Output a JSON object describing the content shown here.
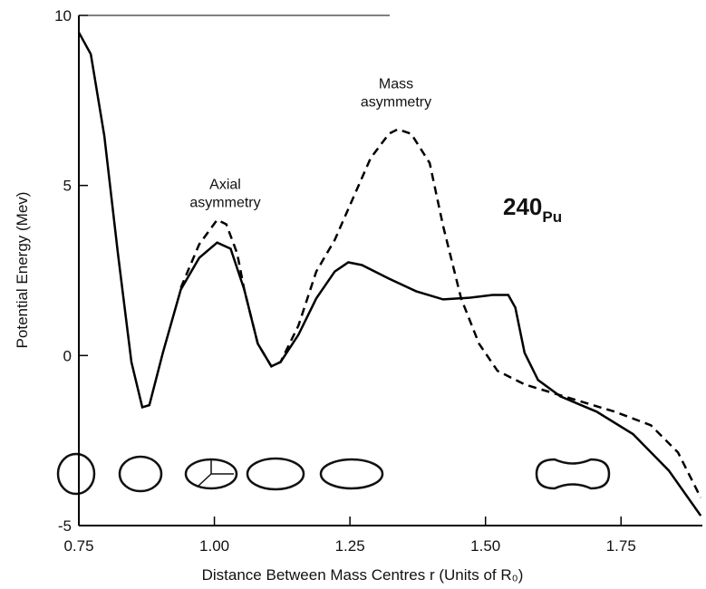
{
  "chart_data": {
    "type": "line",
    "x_label": "Distance Between Mass Centres r (Units of R₀)",
    "y_label": "Potential Energy (Mev)",
    "annotations": [
      {
        "lines": [
          "Axial",
          "asymmetry"
        ],
        "x": 1.02,
        "y": 4.9
      },
      {
        "lines": [
          "Mass",
          "asymmetry"
        ],
        "x": 1.335,
        "y": 7.85
      }
    ],
    "nucleus_label": {
      "mass_number": "240",
      "element": "Pu",
      "color": "#3a3ab0"
    },
    "xlim": [
      0.75,
      1.9
    ],
    "ylim": [
      -5,
      10
    ],
    "xticks": [
      0.75,
      {
        "value": 1,
        "label": "1.00"
      },
      1.25,
      {
        "value": 1.5,
        "label": "1.50"
      },
      1.75
    ],
    "yticks": [
      -5,
      0,
      5,
      10
    ],
    "series": [
      {
        "color": "#000000",
        "linestyle": "solid",
        "x": [
          0.75,
          0.772,
          0.797,
          0.822,
          0.847,
          0.867,
          0.88,
          0.905,
          0.938,
          0.972,
          1.005,
          1.03,
          1.055,
          1.08,
          1.105,
          1.122,
          1.155,
          1.188,
          1.222,
          1.247,
          1.272,
          1.322,
          1.372,
          1.422,
          1.472,
          1.513,
          1.542,
          1.555,
          1.572,
          1.597,
          1.638,
          1.705,
          1.772,
          1.838,
          1.897
        ],
        "values": [
          9.5,
          8.86,
          6.46,
          3.0,
          -0.19,
          -1.52,
          -1.46,
          0.08,
          1.94,
          2.87,
          3.32,
          3.14,
          1.94,
          0.35,
          -0.32,
          -0.19,
          0.61,
          1.68,
          2.47,
          2.74,
          2.66,
          2.26,
          1.89,
          1.65,
          1.7,
          1.78,
          1.78,
          1.41,
          0.08,
          -0.72,
          -1.2,
          -1.65,
          -2.31,
          -3.38,
          -4.71
        ]
      },
      {
        "color": "#000000",
        "linestyle": "dashed",
        "x": [
          0.938,
          0.972,
          1.005,
          1.022,
          1.042,
          1.055,
          1.08,
          1.105,
          1.122,
          1.155,
          1.188,
          1.222,
          1.255,
          1.288,
          1.322,
          1.338,
          1.363,
          1.397,
          1.422,
          1.455,
          1.488,
          1.522,
          1.572,
          1.638,
          1.738,
          1.805,
          1.855,
          1.897
        ],
        "values": [
          1.99,
          3.27,
          3.99,
          3.86,
          3.0,
          1.94,
          0.35,
          -0.32,
          -0.19,
          0.88,
          2.47,
          3.4,
          4.6,
          5.8,
          6.52,
          6.65,
          6.52,
          5.66,
          3.8,
          1.68,
          0.35,
          -0.45,
          -0.85,
          -1.17,
          -1.65,
          -2.05,
          -2.85,
          -4.18
        ]
      }
    ]
  }
}
